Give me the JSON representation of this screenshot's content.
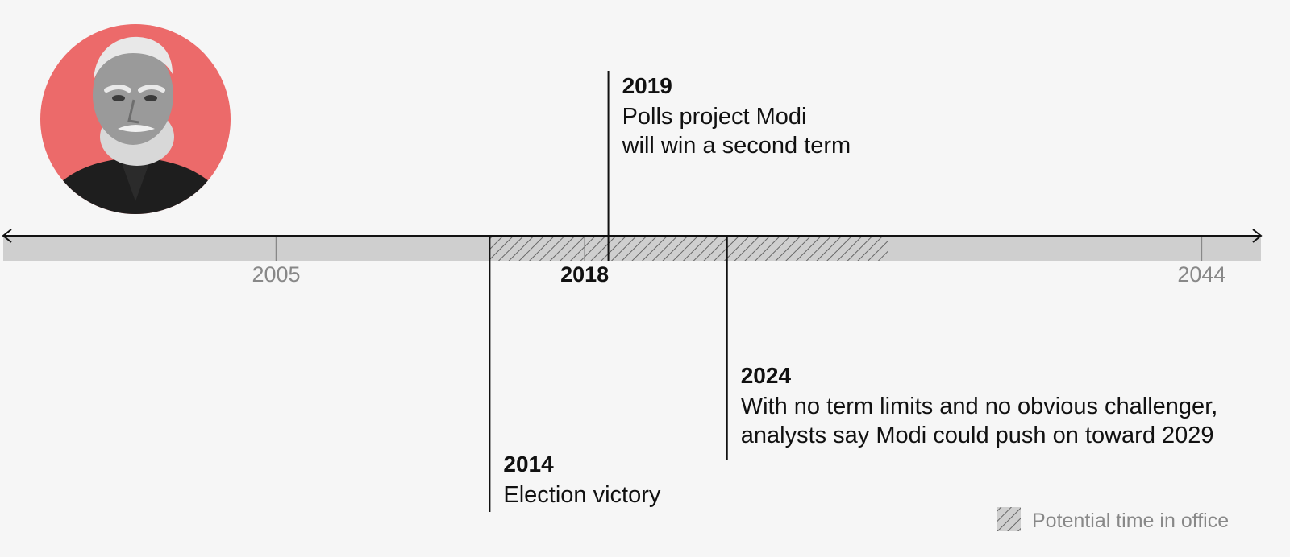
{
  "timeline": {
    "axis_start_year": 1993.5,
    "axis_end_year": 2046.5,
    "ticks": [
      {
        "year": 2005,
        "label": "2005",
        "emphasis": false
      },
      {
        "year": 2018,
        "label": "2018",
        "emphasis": true
      },
      {
        "year": 2044,
        "label": "2044",
        "emphasis": false
      }
    ],
    "potential_office": {
      "start_year": 2014,
      "end_year": 2030.8
    },
    "events": [
      {
        "year": 2019,
        "title": "2019",
        "lines": [
          "Polls project Modi",
          "will win a second term"
        ],
        "side": "above"
      },
      {
        "year": 2014,
        "title": "2014",
        "lines": [
          "Election victory"
        ],
        "side": "below"
      },
      {
        "year": 2024,
        "title": "2024",
        "lines": [
          "With no term limits and no obvious challenger,",
          "analysts say Modi could push on toward 2029"
        ],
        "side": "below"
      }
    ]
  },
  "legend": {
    "label": "Potential time in office"
  },
  "colors": {
    "background": "#f6f6f6",
    "band": "#cfcfcf",
    "hatch": "#666666",
    "accent_circle": "#ec6a6a",
    "axis": "#111111",
    "tick_label": "#888888"
  },
  "portrait": {
    "icon": "portrait-photo"
  }
}
